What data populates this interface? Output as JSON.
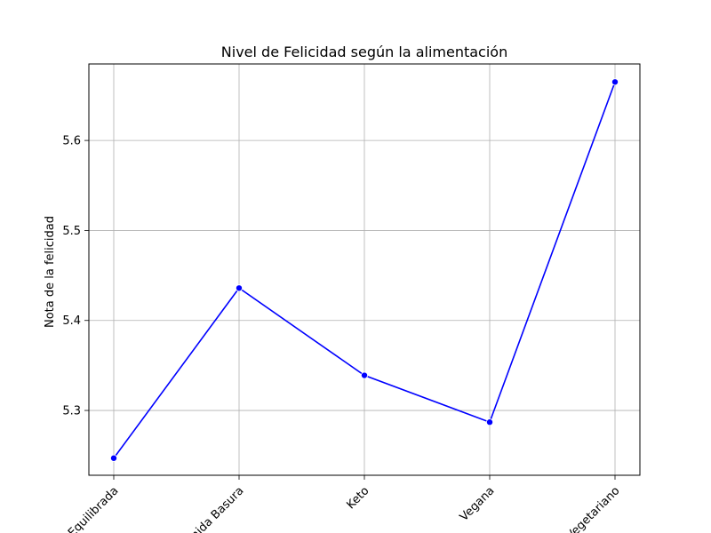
{
  "chart_data": {
    "type": "line",
    "title": "Nivel de Felicidad según la alimentación",
    "xlabel": "",
    "ylabel": "Nota de la felicidad",
    "categories": [
      "Equilibrada",
      "Comida Basura",
      "Keto",
      "Vegana",
      "Vegetariano"
    ],
    "series": [
      {
        "values": [
          5.247,
          5.436,
          5.339,
          5.287,
          5.665
        ],
        "color": "#0000ff",
        "marker": "circle"
      }
    ],
    "ylim": [
      5.228,
      5.685
    ],
    "yticks": [
      5.3,
      5.4,
      5.5,
      5.6
    ],
    "ytick_labels": [
      "5.3",
      "5.4",
      "5.5",
      "5.6"
    ],
    "grid": true,
    "xtick_rotation": 45
  }
}
